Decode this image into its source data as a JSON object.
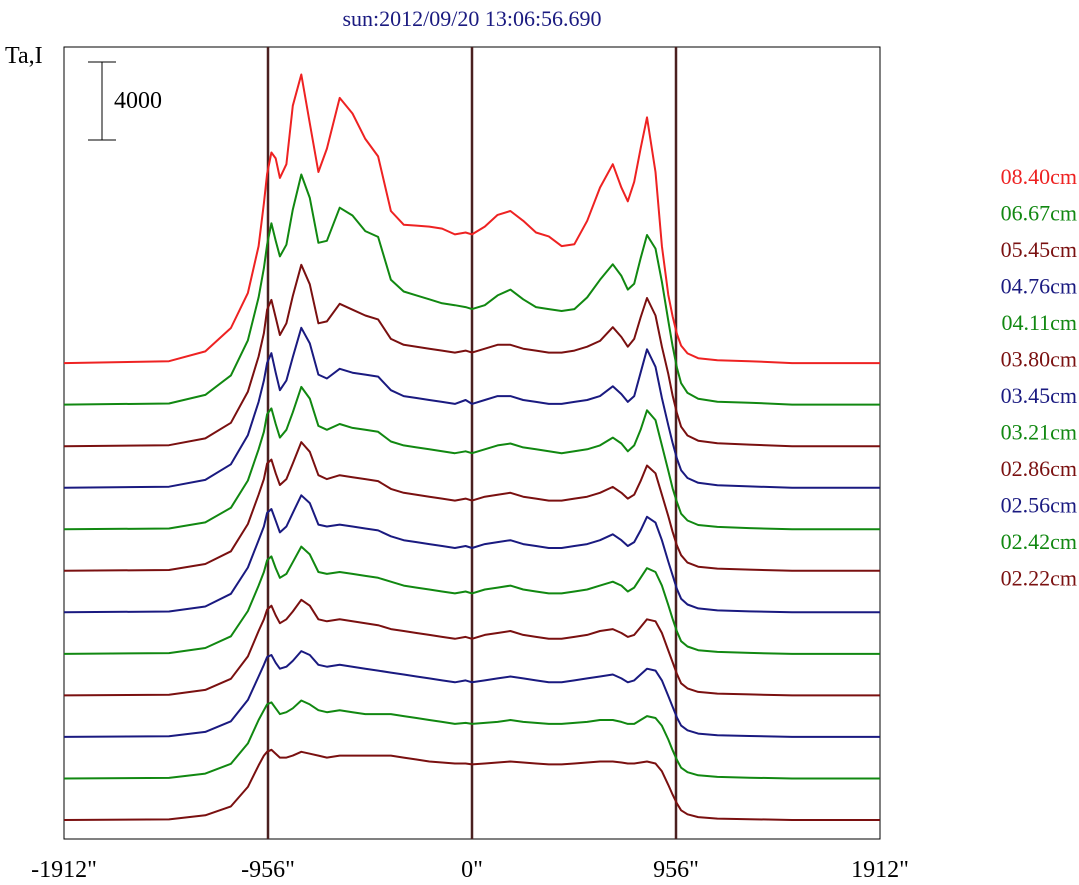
{
  "title": "sun:2012/09/20 13:06:56.690",
  "chart_data": {
    "type": "line",
    "title": "sun:2012/09/20 13:06:56.690",
    "ylabel": "Ta,I",
    "scale_bar_label": "4000",
    "scale_bar_value": 4000,
    "xlim": [
      -1912,
      1912
    ],
    "x_ticks": [
      -1912,
      -956,
      0,
      956,
      1912
    ],
    "x_tick_labels": [
      "-1912\"",
      "-956\"",
      "0\"",
      "956\"",
      "1912\""
    ],
    "vertical_markers": [
      -956,
      0,
      956
    ],
    "offset_per_trace": 2130,
    "x": [
      -1912,
      -1420,
      -1250,
      -1130,
      -1050,
      -1000,
      -975,
      -960,
      -940,
      -920,
      -900,
      -870,
      -840,
      -800,
      -760,
      -720,
      -680,
      -620,
      -560,
      -500,
      -440,
      -380,
      -320,
      -260,
      -200,
      -140,
      -80,
      -30,
      0,
      60,
      120,
      180,
      240,
      300,
      360,
      420,
      480,
      540,
      600,
      660,
      700,
      730,
      760,
      790,
      820,
      860,
      890,
      920,
      940,
      960,
      980,
      1010,
      1060,
      1150,
      1300,
      1500,
      1912
    ],
    "series": [
      {
        "name": "08.40cm",
        "color": "#ee2222",
        "values": [
          0,
          100,
          600,
          1800,
          3600,
          6000,
          8200,
          9700,
          10800,
          10500,
          9500,
          10200,
          13200,
          14800,
          12300,
          9800,
          11000,
          13600,
          12800,
          11500,
          10600,
          7800,
          7100,
          7050,
          7000,
          6900,
          6600,
          6700,
          6600,
          7000,
          7600,
          7800,
          7300,
          6700,
          6500,
          6000,
          6100,
          7300,
          9000,
          10200,
          9000,
          8300,
          9300,
          11000,
          12600,
          9800,
          6000,
          3500,
          2400,
          1500,
          900,
          500,
          250,
          150,
          100,
          0,
          0
        ]
      },
      {
        "name": "06.67cm",
        "color": "#118811",
        "values": [
          0,
          60,
          500,
          1500,
          3300,
          5500,
          7000,
          8200,
          9300,
          8400,
          7600,
          8200,
          10000,
          11800,
          10600,
          8300,
          8400,
          10100,
          9700,
          8900,
          8600,
          6400,
          5800,
          5600,
          5400,
          5200,
          5100,
          5000,
          4900,
          5100,
          5600,
          5900,
          5400,
          5000,
          4900,
          4800,
          4900,
          5500,
          6400,
          7200,
          6600,
          5900,
          6200,
          7500,
          8700,
          8000,
          6300,
          4300,
          3000,
          1900,
          1100,
          600,
          300,
          150,
          100,
          0,
          0
        ]
      },
      {
        "name": "05.45cm",
        "color": "#7a1010",
        "values": [
          0,
          50,
          400,
          1200,
          2800,
          4600,
          5800,
          7000,
          7500,
          6600,
          5700,
          6300,
          7700,
          9300,
          8300,
          6300,
          6400,
          7300,
          7000,
          6700,
          6500,
          5500,
          5200,
          5100,
          5000,
          4900,
          4800,
          4900,
          4800,
          5000,
          5200,
          5200,
          5000,
          4900,
          4800,
          4800,
          4900,
          5100,
          5400,
          6100,
          5600,
          5100,
          5500,
          6600,
          7600,
          6700,
          5100,
          3700,
          2600,
          1700,
          1000,
          550,
          280,
          150,
          80,
          0,
          0
        ]
      },
      {
        "name": "04.76cm",
        "color": "#1a1a80",
        "values": [
          0,
          50,
          400,
          1200,
          2700,
          4400,
          5500,
          6400,
          6900,
          5900,
          5000,
          5500,
          6700,
          8200,
          7400,
          5800,
          5600,
          6100,
          5900,
          5800,
          5700,
          5000,
          4700,
          4600,
          4500,
          4400,
          4300,
          4500,
          4300,
          4500,
          4700,
          4700,
          4500,
          4400,
          4300,
          4300,
          4400,
          4500,
          4700,
          5200,
          4800,
          4400,
          4700,
          5900,
          7100,
          6200,
          4600,
          3200,
          2300,
          1500,
          900,
          500,
          250,
          130,
          70,
          0,
          0
        ]
      },
      {
        "name": "04.11cm",
        "color": "#118811",
        "values": [
          0,
          40,
          350,
          1100,
          2500,
          4100,
          5000,
          5900,
          6200,
          5400,
          4700,
          5100,
          6000,
          7300,
          6700,
          5300,
          5100,
          5400,
          5200,
          5100,
          5000,
          4500,
          4300,
          4200,
          4100,
          4000,
          3900,
          4000,
          3900,
          4100,
          4300,
          4400,
          4200,
          4100,
          4000,
          3900,
          4000,
          4100,
          4300,
          4700,
          4400,
          4000,
          4300,
          5100,
          6100,
          5600,
          4300,
          3000,
          2100,
          1400,
          800,
          450,
          220,
          120,
          60,
          0,
          0
        ]
      },
      {
        "name": "03.80cm",
        "color": "#7a1010",
        "values": [
          0,
          40,
          350,
          1000,
          2400,
          3900,
          4700,
          5500,
          5700,
          5000,
          4400,
          4700,
          5500,
          6600,
          6100,
          4900,
          4700,
          4900,
          4800,
          4700,
          4600,
          4200,
          4000,
          3900,
          3800,
          3700,
          3600,
          3700,
          3600,
          3800,
          3900,
          4000,
          3800,
          3700,
          3600,
          3600,
          3700,
          3800,
          4000,
          4300,
          4000,
          3700,
          3900,
          4600,
          5400,
          5000,
          3900,
          2800,
          2000,
          1300,
          800,
          420,
          210,
          110,
          60,
          0,
          0
        ]
      },
      {
        "name": "03.45cm",
        "color": "#1a1a80",
        "values": [
          0,
          40,
          300,
          950,
          2300,
          3700,
          4400,
          5100,
          5300,
          4700,
          4100,
          4400,
          5100,
          6000,
          5600,
          4500,
          4400,
          4500,
          4400,
          4300,
          4200,
          3900,
          3700,
          3600,
          3500,
          3400,
          3300,
          3400,
          3300,
          3500,
          3600,
          3700,
          3500,
          3400,
          3300,
          3300,
          3400,
          3500,
          3700,
          4000,
          3700,
          3400,
          3600,
          4200,
          4900,
          4600,
          3700,
          2600,
          1900,
          1200,
          700,
          400,
          200,
          100,
          50,
          0,
          0
        ]
      },
      {
        "name": "03.21cm",
        "color": "#118811",
        "values": [
          0,
          40,
          300,
          900,
          2200,
          3500,
          4200,
          4800,
          5000,
          4400,
          3900,
          4100,
          4700,
          5500,
          5100,
          4200,
          4100,
          4200,
          4100,
          4000,
          3900,
          3700,
          3500,
          3400,
          3300,
          3200,
          3100,
          3200,
          3100,
          3300,
          3400,
          3500,
          3300,
          3200,
          3100,
          3100,
          3200,
          3300,
          3500,
          3700,
          3500,
          3200,
          3400,
          3900,
          4400,
          4200,
          3500,
          2500,
          1800,
          1150,
          650,
          380,
          190,
          100,
          50,
          0,
          0
        ]
      },
      {
        "name": "02.86cm",
        "color": "#7a1010",
        "values": [
          0,
          30,
          280,
          850,
          2000,
          3300,
          3900,
          4400,
          4600,
          4100,
          3700,
          3900,
          4300,
          4900,
          4600,
          3900,
          3800,
          3900,
          3800,
          3700,
          3600,
          3400,
          3300,
          3200,
          3100,
          3000,
          2900,
          3000,
          2900,
          3100,
          3200,
          3300,
          3100,
          3000,
          2900,
          2900,
          3000,
          3100,
          3300,
          3400,
          3200,
          3000,
          3100,
          3500,
          3900,
          3800,
          3200,
          2300,
          1700,
          1100,
          620,
          360,
          180,
          90,
          50,
          0,
          0
        ]
      },
      {
        "name": "02.56cm",
        "color": "#1a1a80",
        "values": [
          0,
          30,
          260,
          800,
          1900,
          3100,
          3700,
          4100,
          4200,
          3800,
          3500,
          3600,
          3900,
          4400,
          4200,
          3700,
          3600,
          3700,
          3600,
          3500,
          3400,
          3300,
          3200,
          3100,
          3000,
          2900,
          2800,
          2900,
          2800,
          2900,
          3000,
          3100,
          3000,
          2900,
          2800,
          2800,
          2900,
          3000,
          3100,
          3200,
          3000,
          2800,
          2900,
          3200,
          3500,
          3400,
          2900,
          2100,
          1550,
          1000,
          580,
          340,
          170,
          90,
          50,
          0,
          0
        ]
      },
      {
        "name": "02.42cm",
        "color": "#118811",
        "values": [
          0,
          30,
          250,
          750,
          1800,
          3000,
          3500,
          3800,
          3900,
          3600,
          3300,
          3400,
          3600,
          4000,
          3800,
          3500,
          3400,
          3500,
          3400,
          3300,
          3300,
          3300,
          3200,
          3100,
          3000,
          2900,
          2800,
          2850,
          2800,
          2850,
          2900,
          3000,
          2900,
          2850,
          2800,
          2800,
          2850,
          2900,
          3000,
          3000,
          2900,
          2800,
          2800,
          3000,
          3200,
          3100,
          2700,
          2000,
          1450,
          950,
          550,
          320,
          160,
          80,
          40,
          0,
          0
        ]
      },
      {
        "name": "02.22cm",
        "color": "#7a1010",
        "values": [
          0,
          30,
          240,
          700,
          1700,
          2800,
          3300,
          3500,
          3600,
          3400,
          3200,
          3200,
          3300,
          3500,
          3400,
          3300,
          3200,
          3300,
          3300,
          3300,
          3300,
          3300,
          3200,
          3100,
          3000,
          2950,
          2900,
          2900,
          2850,
          2900,
          2950,
          3000,
          2950,
          2900,
          2850,
          2850,
          2900,
          2950,
          3000,
          3000,
          2950,
          2900,
          2900,
          2950,
          3000,
          2900,
          2500,
          1800,
          1300,
          850,
          500,
          290,
          150,
          70,
          40,
          0,
          0
        ]
      }
    ],
    "legend_position": "right",
    "grid": false
  }
}
